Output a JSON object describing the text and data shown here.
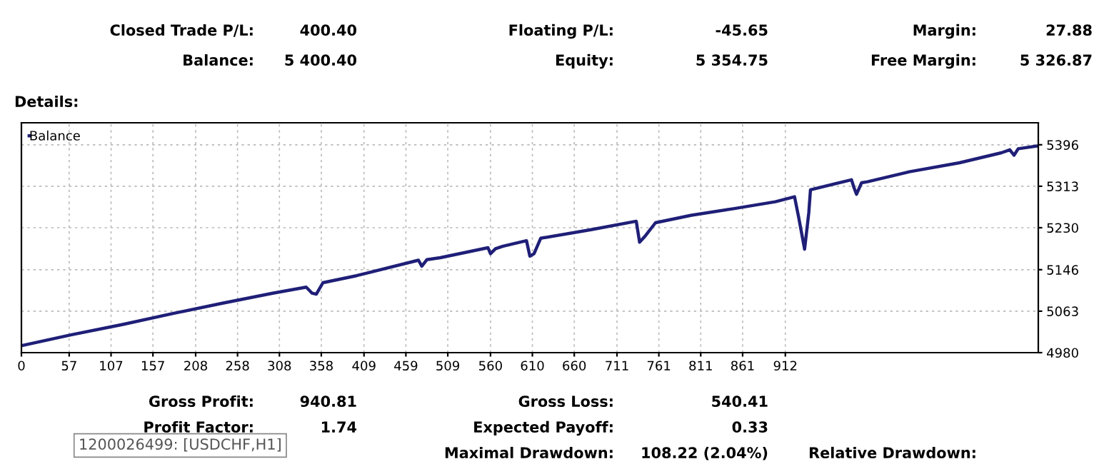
{
  "chart_data": {
    "type": "line",
    "title": "Details:",
    "x": [
      0,
      60,
      120,
      180,
      240,
      300,
      340,
      347,
      352,
      360,
      400,
      474,
      478,
      484,
      500,
      557,
      560,
      566,
      575,
      603,
      607,
      612,
      620,
      680,
      734,
      738,
      744,
      757,
      800,
      850,
      900,
      923,
      928,
      935,
      940,
      942,
      991,
      994,
      997,
      1003,
      1010,
      1060,
      1120,
      1170,
      1180,
      1185,
      1190,
      1214
    ],
    "series": [
      {
        "name": "Balance",
        "color": "#1f1f78",
        "values": [
          4994,
          5016,
          5036,
          5058,
          5079,
          5099,
          5111,
          5099,
          5097,
          5120,
          5134,
          5165,
          5153,
          5166,
          5170,
          5190,
          5178,
          5188,
          5193,
          5204,
          5173,
          5178,
          5209,
          5226,
          5243,
          5201,
          5212,
          5240,
          5255,
          5268,
          5282,
          5292,
          5250,
          5187,
          5260,
          5306,
          5326,
          5310,
          5297,
          5320,
          5322,
          5342,
          5360,
          5380,
          5386,
          5375,
          5388,
          5394
        ]
      }
    ],
    "xlim": [
      0,
      1214
    ],
    "xticks": [
      0,
      57,
      107,
      157,
      208,
      258,
      308,
      358,
      409,
      459,
      509,
      560,
      610,
      660,
      711,
      761,
      811,
      861,
      912
    ],
    "ylim": [
      4980,
      5440
    ],
    "yticks": [
      4980,
      5063,
      5146,
      5230,
      5313,
      5396
    ],
    "grid": true,
    "legend": "top left",
    "marker": "none",
    "line_style": "solid",
    "annotations": [
      "Closed Trade P/L:",
      "400.40",
      "Floating P/L:",
      "-45.65",
      "Margin:",
      "27.88",
      "Balance:",
      "5 400.40",
      "Equity:",
      "5 354.75",
      "Free Margin:",
      "5 326.87",
      "Gross Profit:",
      "940.81",
      "Gross Loss:",
      "540.41",
      "Profit Factor:",
      "1.74",
      "Expected Payoff:",
      "0.33",
      "Maximal Drawdown:",
      "108.22 (2.04%)",
      "Relative Drawdown:",
      "1200026499: [USDCHF,H1]"
    ]
  }
}
